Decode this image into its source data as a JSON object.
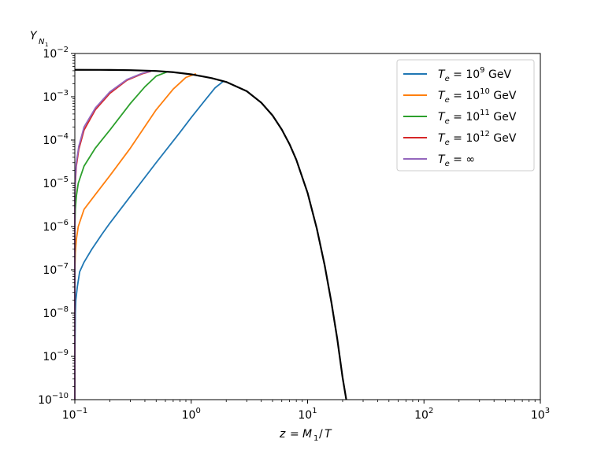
{
  "chart_data": {
    "type": "line",
    "title": "",
    "xlabel": "z = M_1/T",
    "ylabel": "Y_N1",
    "xscale": "log",
    "yscale": "log",
    "xlim": [
      0.1,
      1000
    ],
    "ylim": [
      1e-10,
      0.01
    ],
    "grid": false,
    "legend_position": "top-right",
    "x_ticks": [
      {
        "value": 0.1,
        "base": "10",
        "exp": "−1"
      },
      {
        "value": 1,
        "base": "10",
        "exp": "0"
      },
      {
        "value": 10,
        "base": "10",
        "exp": "1"
      },
      {
        "value": 100,
        "base": "10",
        "exp": "2"
      },
      {
        "value": 1000,
        "base": "10",
        "exp": "3"
      }
    ],
    "y_ticks": [
      {
        "value": 1e-10,
        "base": "10",
        "exp": "−10"
      },
      {
        "value": 1e-09,
        "base": "10",
        "exp": "−9"
      },
      {
        "value": 1e-08,
        "base": "10",
        "exp": "−8"
      },
      {
        "value": 1e-07,
        "base": "10",
        "exp": "−7"
      },
      {
        "value": 1e-06,
        "base": "10",
        "exp": "−6"
      },
      {
        "value": 1e-05,
        "base": "10",
        "exp": "−5"
      },
      {
        "value": 0.0001,
        "base": "10",
        "exp": "−4"
      },
      {
        "value": 0.001,
        "base": "10",
        "exp": "−3"
      },
      {
        "value": 0.01,
        "base": "10",
        "exp": "−2"
      }
    ],
    "series": [
      {
        "name": "T_e = 10^9 GeV",
        "label_base": "10",
        "label_exp": "9",
        "color": "#1f77b4",
        "points": [
          [
            0.1,
            1e-10
          ],
          [
            0.1,
            8e-10
          ],
          [
            0.101,
            1e-08
          ],
          [
            0.102,
            2e-08
          ],
          [
            0.105,
            4e-08
          ],
          [
            0.11,
            9e-08
          ],
          [
            0.12,
            1.5e-07
          ],
          [
            0.14,
            3e-07
          ],
          [
            0.17,
            6.5e-07
          ],
          [
            0.2,
            1.2e-06
          ],
          [
            0.3,
            5e-06
          ],
          [
            0.5,
            3e-05
          ],
          [
            0.8,
            0.00015
          ],
          [
            1.0,
            0.00033
          ],
          [
            1.3,
            0.0008
          ],
          [
            1.6,
            0.0016
          ],
          [
            1.9,
            0.0023
          ]
        ]
      },
      {
        "name": "T_e = 10^10 GeV",
        "label_base": "10",
        "label_exp": "10",
        "color": "#ff7f0e",
        "points": [
          [
            0.1,
            1e-10
          ],
          [
            0.1,
            5e-09
          ],
          [
            0.1,
            1e-07
          ],
          [
            0.101,
            2.5e-07
          ],
          [
            0.103,
            5e-07
          ],
          [
            0.107,
            1e-06
          ],
          [
            0.12,
            2.5e-06
          ],
          [
            0.15,
            5.5e-06
          ],
          [
            0.2,
            1.5e-05
          ],
          [
            0.3,
            6.5e-05
          ],
          [
            0.5,
            0.0005
          ],
          [
            0.7,
            0.0015
          ],
          [
            0.9,
            0.0028
          ],
          [
            1.1,
            0.0034
          ]
        ]
      },
      {
        "name": "T_e = 10^11 GeV",
        "label_base": "10",
        "label_exp": "11",
        "color": "#2ca02c",
        "points": [
          [
            0.1,
            1e-10
          ],
          [
            0.1,
            5e-08
          ],
          [
            0.1,
            1e-06
          ],
          [
            0.101,
            2.5e-06
          ],
          [
            0.103,
            5e-06
          ],
          [
            0.107,
            1e-05
          ],
          [
            0.12,
            2.5e-05
          ],
          [
            0.15,
            6.5e-05
          ],
          [
            0.2,
            0.00017
          ],
          [
            0.3,
            0.0007
          ],
          [
            0.4,
            0.0017
          ],
          [
            0.5,
            0.003
          ],
          [
            0.62,
            0.00375
          ]
        ]
      },
      {
        "name": "T_e = 10^12 GeV",
        "label_base": "10",
        "label_exp": "12",
        "color": "#d62728",
        "points": [
          [
            0.1,
            1e-10
          ],
          [
            0.1,
            1e-07
          ],
          [
            0.1,
            4e-06
          ],
          [
            0.101,
            1e-05
          ],
          [
            0.103,
            2.5e-05
          ],
          [
            0.108,
            6e-05
          ],
          [
            0.12,
            0.00017
          ],
          [
            0.15,
            0.0005
          ],
          [
            0.2,
            0.0012
          ],
          [
            0.28,
            0.0024
          ],
          [
            0.38,
            0.0034
          ],
          [
            0.45,
            0.00385
          ]
        ]
      },
      {
        "name": "T_e = ∞",
        "label_base": "∞",
        "label_exp": "",
        "color": "#9467bd",
        "points": [
          [
            0.1,
            1e-10
          ],
          [
            0.1,
            1e-07
          ],
          [
            0.1,
            5e-06
          ],
          [
            0.101,
            1.2e-05
          ],
          [
            0.103,
            3e-05
          ],
          [
            0.108,
            7e-05
          ],
          [
            0.12,
            0.0002
          ],
          [
            0.15,
            0.00055
          ],
          [
            0.2,
            0.0013
          ],
          [
            0.28,
            0.0025
          ],
          [
            0.38,
            0.0035
          ],
          [
            0.45,
            0.0039
          ]
        ]
      },
      {
        "name": "equilibrium",
        "legend": false,
        "color": "#000000",
        "points": [
          [
            0.1,
            0.0042
          ],
          [
            0.2,
            0.00418
          ],
          [
            0.3,
            0.00412
          ],
          [
            0.5,
            0.00395
          ],
          [
            0.7,
            0.0037
          ],
          [
            1.0,
            0.0033
          ],
          [
            1.5,
            0.0027
          ],
          [
            2.0,
            0.0022
          ],
          [
            3.0,
            0.00135
          ],
          [
            4.0,
            0.00073
          ],
          [
            5.0,
            0.00037
          ],
          [
            6.0,
            0.000175
          ],
          [
            7.0,
            8e-05
          ],
          [
            8.0,
            3.5e-05
          ],
          [
            10.0,
            6e-06
          ],
          [
            12.0,
            9e-07
          ],
          [
            14.0,
            1.3e-07
          ],
          [
            16.0,
            1.8e-08
          ],
          [
            18.0,
            2.5e-09
          ],
          [
            20.0,
            3.2e-10
          ],
          [
            21.5,
            1e-10
          ]
        ]
      }
    ]
  }
}
